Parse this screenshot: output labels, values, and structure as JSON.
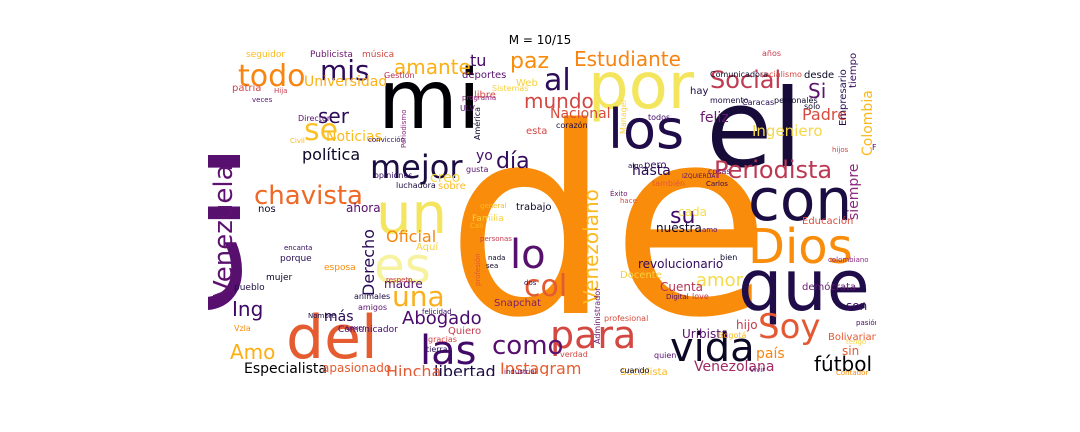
{
  "title": "M = 10/15",
  "words": [
    {
      "text": "de",
      "color": "#f98c0a"
    },
    {
      "text": "en",
      "color": "#57106e"
    },
    {
      "text": "el",
      "color": "#160b39"
    },
    {
      "text": "mi",
      "color": "#000004"
    },
    {
      "text": "por",
      "color": "#f3e55d"
    },
    {
      "text": "que",
      "color": "#1f0c48"
    },
    {
      "text": "con",
      "color": "#1b0c41"
    },
    {
      "text": "los",
      "color": "#1f0c48"
    },
    {
      "text": "Dios",
      "color": "#f98c0a"
    },
    {
      "text": "del",
      "color": "#e55c30"
    },
    {
      "text": "un",
      "color": "#f3e55d"
    },
    {
      "text": "es",
      "color": "#f6f29e"
    },
    {
      "text": "las",
      "color": "#420a68"
    },
    {
      "text": "vida",
      "color": "#0b0724"
    },
    {
      "text": "para",
      "color": "#d44842"
    },
    {
      "text": "Soy",
      "color": "#e35933"
    },
    {
      "text": "Venezuela",
      "color": "#5c126e"
    },
    {
      "text": "lo",
      "color": "#57106e"
    },
    {
      "text": "mejor",
      "color": "#1b0c41"
    },
    {
      "text": "todo",
      "color": "#f8850f"
    },
    {
      "text": "chavista",
      "color": "#ed6925"
    },
    {
      "text": "al",
      "color": "#2d0b59"
    },
    {
      "text": "mis",
      "color": "#2d0b59"
    },
    {
      "text": "una",
      "color": "#fcaf1d"
    },
    {
      "text": "como",
      "color": "#57106e"
    },
    {
      "text": "Social",
      "color": "#c03a51"
    },
    {
      "text": "Periodista",
      "color": "#bd3853"
    },
    {
      "text": "Estudiante",
      "color": "#f78311"
    },
    {
      "text": "amante",
      "color": "#fcb014"
    },
    {
      "text": "se",
      "color": "#fac127"
    },
    {
      "text": "día",
      "color": "#320a5e"
    },
    {
      "text": "paz",
      "color": "#f98c0a"
    },
    {
      "text": "Venezolano",
      "color": "#fbb91f"
    },
    {
      "text": "mundo",
      "color": "#d34743"
    },
    {
      "text": "Colombia",
      "color": "#fbb81d"
    },
    {
      "text": "su",
      "color": "#420a68"
    },
    {
      "text": "col",
      "color": "#e45a31"
    },
    {
      "text": "ser",
      "color": "#2d0b59"
    },
    {
      "text": "más",
      "color": "#280b54"
    },
    {
      "text": "Amo",
      "color": "#fcae12"
    },
    {
      "text": "Ing",
      "color": "#3e0966"
    },
    {
      "text": "fútbol",
      "color": "#000004"
    },
    {
      "text": "Abogado",
      "color": "#4c0c6b"
    },
    {
      "text": "amor",
      "color": "#f4db4b"
    },
    {
      "text": "Derecho",
      "color": "#280b54"
    },
    {
      "text": "Si",
      "color": "#5c126e"
    },
    {
      "text": "tu",
      "color": "#440a68"
    },
    {
      "text": "Ingeniero",
      "color": "#f6d746"
    },
    {
      "text": "política",
      "color": "#0d0829"
    },
    {
      "text": "Padre",
      "color": "#d84c3e"
    },
    {
      "text": "Instagram",
      "color": "#e65d2f"
    },
    {
      "text": "Oficial",
      "color": "#f8850f"
    },
    {
      "text": "libertad",
      "color": "#1b0c41"
    },
    {
      "text": "Hincha",
      "color": "#e35933"
    },
    {
      "text": "Especialista",
      "color": "#000004"
    },
    {
      "text": "Nacional",
      "color": "#d84c3e"
    },
    {
      "text": "hasta",
      "color": "#280b54"
    },
    {
      "text": "feliz",
      "color": "#6a176e"
    },
    {
      "text": "Universidad",
      "color": "#fcb014"
    },
    {
      "text": "siempre",
      "color": "#8c2981"
    },
    {
      "text": "Venezolana",
      "color": "#a02a63"
    },
    {
      "text": "Noticias",
      "color": "#fbba1f"
    },
    {
      "text": "país",
      "color": "#f8850f"
    },
    {
      "text": "creo",
      "color": "#f6d746"
    },
    {
      "text": "yo",
      "color": "#420a68"
    },
    {
      "text": "revolucionario",
      "color": "#320a5e"
    },
    {
      "text": "Uribista",
      "color": "#57106e"
    },
    {
      "text": "Cuenta",
      "color": "#b63458"
    },
    {
      "text": "hijo",
      "color": "#c43c4e"
    },
    {
      "text": "son",
      "color": "#3e0966"
    },
    {
      "text": "sin",
      "color": "#e55c30"
    },
    {
      "text": "nuestra",
      "color": "#0d0829"
    },
    {
      "text": "cada",
      "color": "#f4db4b"
    },
    {
      "text": "trabajo",
      "color": "#0b0724"
    },
    {
      "text": "Snapchat",
      "color": "#7a1d6d"
    },
    {
      "text": "madre",
      "color": "#57106e"
    },
    {
      "text": "ahora",
      "color": "#57106e"
    },
    {
      "text": "apasionado",
      "color": "#e45a31"
    },
    {
      "text": "Socialista",
      "color": "#fbb91f"
    },
    {
      "text": "Bolivariano",
      "color": "#e35933"
    },
    {
      "text": "Educación",
      "color": "#d84c3e"
    },
    {
      "text": "desde",
      "color": "#0d0829"
    },
    {
      "text": "Empresario",
      "color": "#280b54"
    },
    {
      "text": "Web",
      "color": "#f7d13d"
    },
    {
      "text": "Aquí",
      "color": "#f7d13d"
    },
    {
      "text": "Quiero",
      "color": "#c43c4e"
    },
    {
      "text": "Docente",
      "color": "#f7d03c"
    },
    {
      "text": "demócrata",
      "color": "#6a176e"
    },
    {
      "text": "tiempo",
      "color": "#320a5e"
    },
    {
      "text": "deportes",
      "color": "#57106e"
    },
    {
      "text": "libre",
      "color": "#d84c3e"
    },
    {
      "text": "hay",
      "color": "#1b0c41"
    },
    {
      "text": "pero",
      "color": "#320a5e"
    },
    {
      "text": "esta",
      "color": "#d34743"
    },
    {
      "text": "sobre",
      "color": "#fbba1f"
    },
    {
      "text": "nos",
      "color": "#0d0829"
    },
    {
      "text": "Comunicador",
      "color": "#420a68"
    },
    {
      "text": "esposa",
      "color": "#f98c0a"
    },
    {
      "text": "porque",
      "color": "#280b54"
    },
    {
      "text": "mujer",
      "color": "#0d0829"
    },
    {
      "text": "pueblo",
      "color": "#1b0c41"
    },
    {
      "text": "patria",
      "color": "#d34743"
    },
    {
      "text": "seguidor",
      "color": "#fbba1f"
    },
    {
      "text": "Publicista",
      "color": "#6a176e"
    },
    {
      "text": "música",
      "color": "#d34743"
    },
    {
      "text": "Gestión",
      "color": "#b63458"
    },
    {
      "text": "Director",
      "color": "#57106e"
    },
    {
      "text": "Manager",
      "color": "#f7d03c"
    },
    {
      "text": "Caracas",
      "color": "#280b54"
    },
    {
      "text": "personales",
      "color": "#0d0829"
    },
    {
      "text": "momento",
      "color": "#1b0c41"
    },
    {
      "text": "Comunicadora",
      "color": "#0d0829"
    },
    {
      "text": "socialismo",
      "color": "#d34743"
    },
    {
      "text": "años",
      "color": "#c43c4e"
    },
    {
      "text": "Sistemas",
      "color": "#f7d03c"
    },
    {
      "text": "programa",
      "color": "#8c2981"
    },
    {
      "text": "ULV",
      "color": "#57106e"
    },
    {
      "text": "América",
      "color": "#0d0829"
    },
    {
      "text": "corazón",
      "color": "#1b0c41"
    },
    {
      "text": "todos",
      "color": "#420a68"
    },
    {
      "text": "Periodismo",
      "color": "#8c2981"
    },
    {
      "text": "opiniones",
      "color": "#320a5e"
    },
    {
      "text": "luchadora",
      "color": "#1b0c41"
    },
    {
      "text": "gusta",
      "color": "#57106e"
    },
    {
      "text": "también",
      "color": "#e35933"
    },
    {
      "text": "algo",
      "color": "#1b0c41"
    },
    {
      "text": "Éxito",
      "color": "#6a176e"
    },
    {
      "text": "hace",
      "color": "#d84c3e"
    },
    {
      "text": "general",
      "color": "#fbba1f"
    },
    {
      "text": "Familia",
      "color": "#f7d13d"
    },
    {
      "text": "profesión",
      "color": "#e35933"
    },
    {
      "text": "personas",
      "color": "#c43c4e"
    },
    {
      "text": "nada",
      "color": "#0d0829"
    },
    {
      "text": "sea",
      "color": "#0d0829"
    },
    {
      "text": "dos",
      "color": "#320a5e"
    },
    {
      "text": "Administrador",
      "color": "#6a176e"
    },
    {
      "text": "profesional",
      "color": "#d84c3e"
    },
    {
      "text": "quien",
      "color": "#57106e"
    },
    {
      "text": "Digital",
      "color": "#57106e"
    },
    {
      "text": "love",
      "color": "#c43c4e"
    },
    {
      "text": "bien",
      "color": "#0d0829"
    },
    {
      "text": "vivir",
      "color": "#57106e"
    },
    {
      "text": "Contador",
      "color": "#f98c0a"
    },
    {
      "text": "pasión",
      "color": "#420a68"
    },
    {
      "text": "solo",
      "color": "#0d0829"
    },
    {
      "text": "colombiano",
      "color": "#8c2981"
    },
    {
      "text": "Bogotá",
      "color": "#fbba1f"
    },
    {
      "text": "tengo",
      "color": "#f7d13d"
    },
    {
      "text": "cuando",
      "color": "#0d0829"
    },
    {
      "text": "verdad",
      "color": "#d34743"
    },
    {
      "text": "industrial",
      "color": "#57106e"
    },
    {
      "text": "gracias",
      "color": "#d34743"
    },
    {
      "text": "tierra",
      "color": "#280b54"
    },
    {
      "text": "amigos",
      "color": "#57106e"
    },
    {
      "text": "felicidad",
      "color": "#320a5e"
    },
    {
      "text": "animales",
      "color": "#1b0c41"
    },
    {
      "text": "respeto",
      "color": "#c43c4e"
    },
    {
      "text": "Nombre",
      "color": "#1b0c41"
    },
    {
      "text": "encanta",
      "color": "#320a5e"
    },
    {
      "text": "Vzla",
      "color": "#f98c0a"
    },
    {
      "text": "Lover",
      "color": "#57106e"
    },
    {
      "text": "cosas",
      "color": "#6a176e"
    },
    {
      "text": "Carlos",
      "color": "#320a5e"
    },
    {
      "text": "Cali",
      "color": "#fbba1f"
    },
    {
      "text": "veces",
      "color": "#57106e"
    },
    {
      "text": "Hija",
      "color": "#c43c4e"
    },
    {
      "text": "hijos",
      "color": "#d34743"
    },
    {
      "text": "FC",
      "color": "#57106e"
    },
    {
      "text": "IZQUIERDA",
      "color": "#57106e"
    },
    {
      "text": "amo",
      "color": "#57106e"
    },
    {
      "text": "Civil",
      "color": "#fbba1f"
    },
    {
      "text": "convicción",
      "color": "#320a5e"
    }
  ]
}
